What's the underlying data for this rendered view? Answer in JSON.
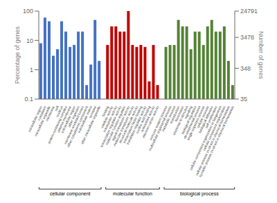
{
  "chart_data": {
    "type": "bar",
    "ylabel": "Percentage of genes",
    "y2label": "Number of genes",
    "log": true,
    "grid": false,
    "ylim": [
      0.1,
      100
    ],
    "yticks": [
      0.1,
      1,
      10,
      100
    ],
    "y2lim": [
      35,
      24791
    ],
    "y2ticks": [
      35,
      348,
      3478,
      24791
    ],
    "series": [
      {
        "name": "cellular component",
        "color": "#4472C4",
        "categories": [
          "intracellular region",
          "cytoplasm",
          "intracellular organelle",
          "membrane",
          "cell",
          "nucleus",
          "protein-containing complex",
          "plasma membrane",
          "extracellular region",
          "other organism",
          "membrane-enclosed lumen",
          "other cytoplasmic component",
          "extracellular matrix",
          "synapse",
          "other intracellular organelle"
        ],
        "values": [
          8,
          60,
          45,
          3,
          5,
          45,
          20,
          6,
          7,
          20,
          20,
          0.3,
          1.5,
          50,
          2
        ]
      },
      {
        "name": "molecular function",
        "color": "#C00000",
        "categories": [
          "binding",
          "catalytic activity",
          "transporter activity",
          "transcription regulator activity",
          "molecular function regulator",
          "signal transducer activity",
          "molecular transducer activity",
          "structural molecule activity",
          "transcription factor binding",
          "translation regulator activity",
          "nucleic acid binding",
          "antioxidant activity",
          "electron carrier activity"
        ],
        "values": [
          7,
          30,
          30,
          20,
          20,
          100,
          7,
          6,
          7,
          6,
          0.4,
          7,
          0.3
        ]
      },
      {
        "name": "biological process",
        "color": "#548235",
        "categories": [
          "immune system process",
          "multicellular organismal process",
          "metabolic process",
          "reproduction",
          "locomotion",
          "response to stimulus",
          "signaling",
          "biological regulation",
          "developmental process",
          "single-organism process",
          "cellular process",
          "biological adhesion",
          "cell proliferation",
          "cellular component organization or biogenesis",
          "cellular component organization",
          "cellular process involved in chemical homeostasis",
          "synaptic process involved in chemical homeostasis"
        ],
        "values": [
          6,
          7,
          7,
          50,
          30,
          30,
          5,
          20,
          20,
          7,
          30,
          50,
          20,
          20,
          30,
          2,
          0.3
        ]
      }
    ]
  }
}
